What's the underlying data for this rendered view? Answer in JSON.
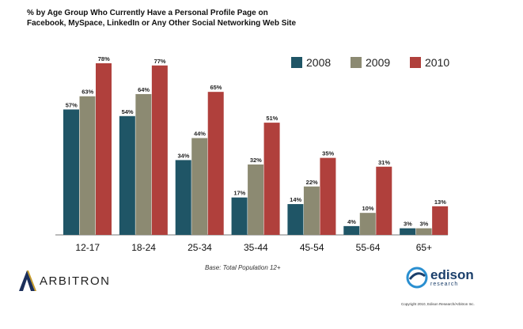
{
  "title_lines": [
    "% by Age Group Who Currently Have a Personal Profile Page on",
    "Facebook, MySpace, LinkedIn or Any Other Social Networking Web Site"
  ],
  "base_note": "Base: Total Population 12+",
  "logo_left": {
    "text": "ARBITRON",
    "icon": "arbitron-chevron-logo"
  },
  "logo_right": {
    "text": "edison",
    "subtext": "research",
    "icon": "edison-swirl-logo"
  },
  "copyright": "Copyright 2010, Edison Research/Arbitron Inc.",
  "colors": {
    "2008": "#1f5566",
    "2009": "#8c8a72",
    "2010": "#b0403c"
  },
  "chart_data": {
    "type": "bar",
    "categories": [
      "12-17",
      "18-24",
      "25-34",
      "35-44",
      "45-54",
      "55-64",
      "65+"
    ],
    "series": [
      {
        "name": "2008",
        "values": [
          57,
          54,
          34,
          17,
          14,
          4,
          3
        ]
      },
      {
        "name": "2009",
        "values": [
          63,
          64,
          44,
          32,
          22,
          10,
          3
        ]
      },
      {
        "name": "2010",
        "values": [
          78,
          77,
          65,
          51,
          35,
          31,
          13
        ]
      }
    ],
    "value_suffix": "%",
    "ylim": [
      0,
      78
    ],
    "legend_position": "top-right",
    "grid": false
  }
}
